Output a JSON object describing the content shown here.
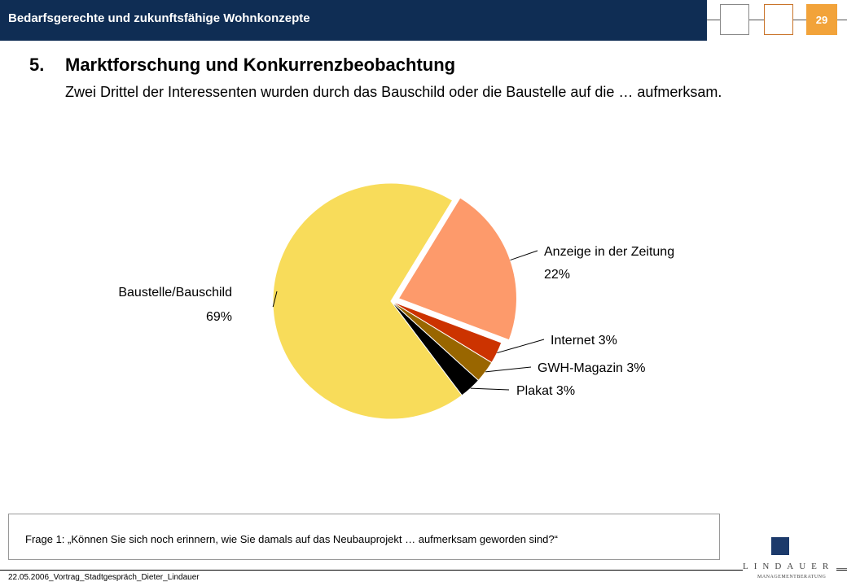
{
  "header": {
    "title": "Bedarfsgerechte und zukunftsfähige Wohnkonzepte",
    "page_number": "29"
  },
  "section": {
    "number": "5.",
    "title": "Marktforschung und Konkurrenzbeobachtung",
    "subtitle": "Zwei Drittel der Interessenten wurden durch das Bauschild oder die Baustelle auf die … aufmerksam."
  },
  "chart_data": {
    "type": "pie",
    "title": "",
    "start_angle_deg": 143,
    "direction": "clockwise",
    "exploded": [
      "Anzeige in der Zeitung"
    ],
    "slices": [
      {
        "name": "Baustelle/Bauschild",
        "value": 69,
        "label": "69%",
        "color": "#f8dc5a"
      },
      {
        "name": "Anzeige in der Zeitung",
        "value": 22,
        "label": "22%",
        "color": "#fd9a6b"
      },
      {
        "name": "Internet",
        "value": 3,
        "label": "3%",
        "color": "#cc3300"
      },
      {
        "name": "GWH-Magazin",
        "value": 3,
        "label": "3%",
        "color": "#996600"
      },
      {
        "name": "Plakat",
        "value": 3,
        "label": "3%",
        "color": "#000000"
      }
    ]
  },
  "footnote": {
    "text": "Frage 1: „Können Sie sich noch erinnern, wie Sie damals auf das Neubauprojekt …  aufmerksam geworden sind?“"
  },
  "footer": {
    "text": "22.05.2006_Vortrag_Stadtgespräch_Dieter_Lindauer"
  },
  "logo": {
    "name": "LINDAUER",
    "subtext": "MANAGEMENTBERATUNG"
  }
}
